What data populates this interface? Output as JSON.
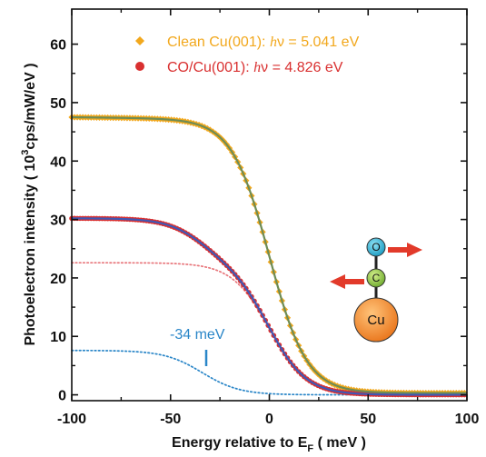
{
  "chart_data": {
    "type": "scatter",
    "xlabel_main": "Energy relative to E",
    "xlabel_sub": "F",
    "xlabel_tail": " ( meV )",
    "ylabel_main": "Photoelectron intensity  ( 10",
    "ylabel_sup": "3",
    "ylabel_tail": "cps/mW/eV )",
    "xlim": [
      -100,
      100
    ],
    "ylim": [
      -1,
      66
    ],
    "x_ticks": [
      "-100",
      "-50",
      "0",
      "50",
      "100"
    ],
    "y_ticks": [
      "0",
      "10",
      "20",
      "30",
      "40",
      "50",
      "60"
    ],
    "grid": false,
    "legend_position": "top-right",
    "series": [
      {
        "name": "Clean Cu(001): hν = 5.041 eV",
        "label_pre": "Clean Cu(001): ",
        "label_h": "h",
        "label_post": "ν = 5.041 eV",
        "marker": "diamond",
        "color": "#f2a81d",
        "fit_color": "#6e8c55",
        "fermi": {
          "mu": 0,
          "width": 9.5,
          "amplitude": 47.2,
          "offset": 0.3,
          "slope": 0.008
        }
      },
      {
        "name": "CO/Cu(001): hν = 4.826 eV",
        "label_pre": "CO/Cu(001): ",
        "label_h": "h",
        "label_post": "ν = 4.826 eV",
        "marker": "circle",
        "color": "#d93030",
        "fit_color": "#3f58b5",
        "fermi_components": [
          {
            "mu": 0,
            "width": 9.5,
            "amplitude": 22.6,
            "color": "#e8777c"
          },
          {
            "mu": -34,
            "width": 9.5,
            "amplitude": 7.6,
            "color": "#2a86c8"
          }
        ],
        "offset": 0.0
      }
    ],
    "annotations": [
      {
        "text": "-34 meV",
        "x": -34,
        "color": "#2a86c8"
      }
    ],
    "inset": {
      "atoms": [
        "O",
        "C",
        "Cu"
      ],
      "atom_colors": {
        "O": "#2ab0d6",
        "C": "#8bc43c",
        "Cu": "#f08a24"
      },
      "arrow_color": "#e23a2a"
    }
  }
}
